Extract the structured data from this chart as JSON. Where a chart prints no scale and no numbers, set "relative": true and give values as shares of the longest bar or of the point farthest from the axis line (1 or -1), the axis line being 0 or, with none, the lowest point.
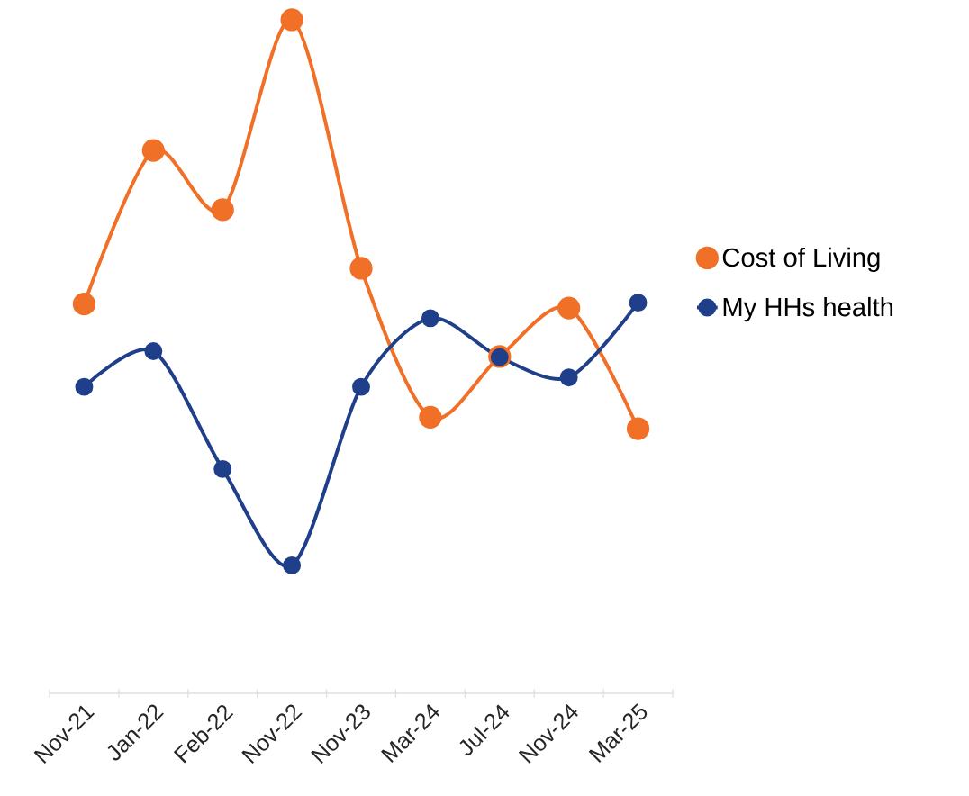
{
  "chart_data": {
    "type": "line",
    "relative": true,
    "categories": [
      "Nov-21",
      "Jan-22",
      "Feb-22",
      "Nov-22",
      "Nov-23",
      "Mar-24",
      "Jul-24",
      "Nov-24",
      "Mar-25"
    ],
    "series": [
      {
        "name": "Cost of Living",
        "color": "#f07028",
        "values": [
          0.578,
          0.806,
          0.718,
          1,
          0.631,
          0.41,
          0.5,
          0.572,
          0.393
        ]
      },
      {
        "name": "My HHs health",
        "color": "#1f3f8a",
        "values": [
          0.455,
          0.508,
          0.333,
          0.19,
          0.455,
          0.557,
          0.499,
          0.469,
          0.58
        ]
      }
    ],
    "legend": "right",
    "marker": "circle",
    "line_style": "solid"
  }
}
